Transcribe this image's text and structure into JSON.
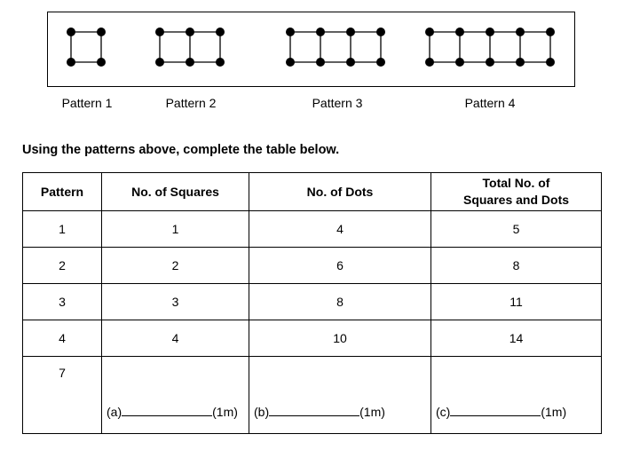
{
  "patterns": [
    {
      "label": "Pattern 1",
      "squares": 1
    },
    {
      "label": "Pattern 2",
      "squares": 2
    },
    {
      "label": "Pattern 3",
      "squares": 3
    },
    {
      "label": "Pattern 4",
      "squares": 4
    }
  ],
  "instruction": "Using the patterns above, complete the table below.",
  "table": {
    "headers": [
      "Pattern",
      "No. of Squares",
      "No. of Dots",
      "Total No. of Squares and Dots"
    ],
    "rows": [
      [
        "1",
        "1",
        "4",
        "5"
      ],
      [
        "2",
        "2",
        "6",
        "8"
      ],
      [
        "3",
        "3",
        "8",
        "11"
      ],
      [
        "4",
        "4",
        "10",
        "14"
      ]
    ],
    "last_row": {
      "pattern": "7",
      "answers": [
        {
          "label": "(a)",
          "marks": "(1m)"
        },
        {
          "label": "(b)",
          "marks": "(1m)"
        },
        {
          "label": "(c)",
          "marks": "(1m)"
        }
      ]
    }
  }
}
